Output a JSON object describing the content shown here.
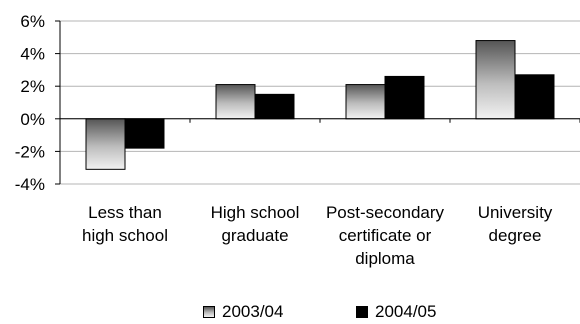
{
  "chart_data": {
    "type": "bar",
    "categories": [
      "Less than high school",
      "High school graduate",
      "Post-secondary certificate or diploma",
      "University degree"
    ],
    "category_lines": [
      [
        "Less than",
        "high school"
      ],
      [
        "High school",
        "graduate"
      ],
      [
        "Post-secondary",
        "certificate or",
        "diploma"
      ],
      [
        "University",
        "degree"
      ]
    ],
    "series": [
      {
        "name": "2003/04",
        "values": [
          -3.1,
          2.1,
          2.1,
          4.8
        ]
      },
      {
        "name": "2004/05",
        "values": [
          -1.8,
          1.5,
          2.6,
          2.7
        ]
      }
    ],
    "ylim": [
      -4,
      6
    ],
    "yticks": [
      "-4%",
      "-2%",
      "0%",
      "2%",
      "4%",
      "6%"
    ],
    "ytick_values": [
      -4,
      -2,
      0,
      2,
      4,
      6
    ],
    "grid": true,
    "legend_placement": "bottom",
    "colors": {
      "series0_top": "#555555",
      "series0_bottom": "#f2f2f2",
      "series1": "#000000",
      "grid": "#b4b4b4"
    }
  }
}
